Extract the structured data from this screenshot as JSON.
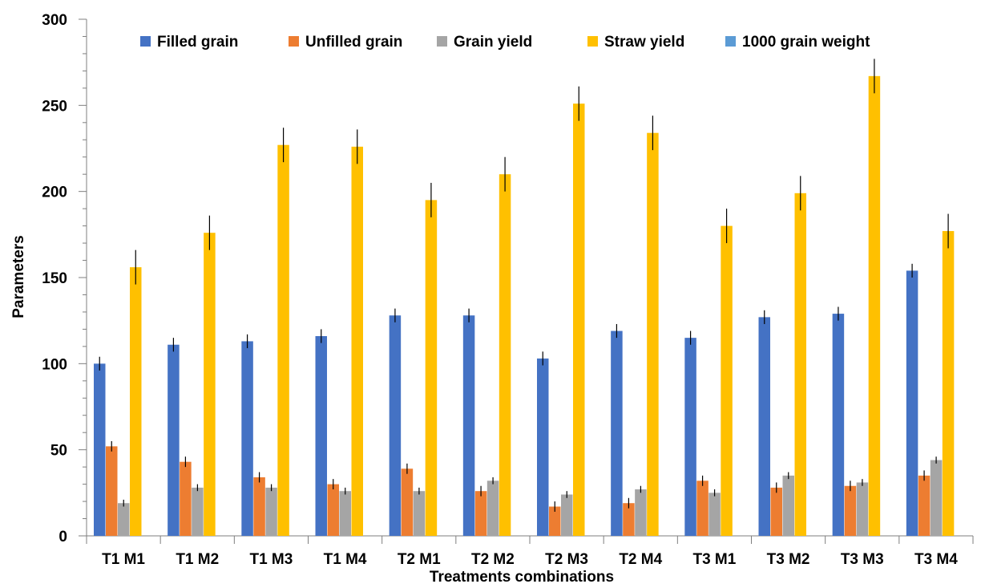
{
  "chart_data": {
    "type": "bar",
    "xlabel": "Treatments combinations",
    "ylabel": "Parameters",
    "ylim": [
      0,
      300
    ],
    "yticks": [
      0,
      50,
      100,
      150,
      200,
      250,
      300
    ],
    "grid": false,
    "legend_position": "top",
    "categories": [
      "T1 M1",
      "T1 M2",
      "T1 M3",
      "T1 M4",
      "T2 M1",
      "T2 M2",
      "T2 M3",
      "T2 M4",
      "T3 M1",
      "T3 M2",
      "T3 M3",
      "T3 M4"
    ],
    "series": [
      {
        "name": "Filled grain",
        "color": "#4472C4",
        "values": [
          100,
          111,
          113,
          116,
          128,
          128,
          103,
          119,
          115,
          127,
          129,
          154
        ],
        "errors": [
          4,
          4,
          4,
          4,
          4,
          4,
          4,
          4,
          4,
          4,
          4,
          4
        ]
      },
      {
        "name": "Unfilled grain",
        "color": "#ED7D31",
        "values": [
          52,
          43,
          34,
          30,
          39,
          26,
          17,
          19,
          32,
          28,
          29,
          35
        ],
        "errors": [
          3,
          3,
          3,
          3,
          3,
          3,
          3,
          3,
          3,
          3,
          3,
          3
        ]
      },
      {
        "name": "Grain yield",
        "color": "#A5A5A5",
        "values": [
          19,
          28,
          28,
          26,
          26,
          32,
          24,
          27,
          25,
          35,
          31,
          44
        ],
        "errors": [
          2,
          2,
          2,
          2,
          2,
          2,
          2,
          2,
          2,
          2,
          2,
          2
        ]
      },
      {
        "name": "Straw yield",
        "color": "#FFC000",
        "values": [
          156,
          176,
          227,
          226,
          195,
          210,
          251,
          234,
          180,
          199,
          267,
          177
        ],
        "errors": [
          10,
          10,
          10,
          10,
          10,
          10,
          10,
          10,
          10,
          10,
          10,
          10
        ]
      },
      {
        "name": "1000 grain weight",
        "color": "#5B9BD5",
        "values": [
          0,
          0,
          0,
          0,
          0,
          0,
          0,
          0,
          0,
          0,
          0,
          0
        ],
        "errors": [
          0,
          0,
          0,
          0,
          0,
          0,
          0,
          0,
          0,
          0,
          0,
          0
        ]
      }
    ]
  }
}
